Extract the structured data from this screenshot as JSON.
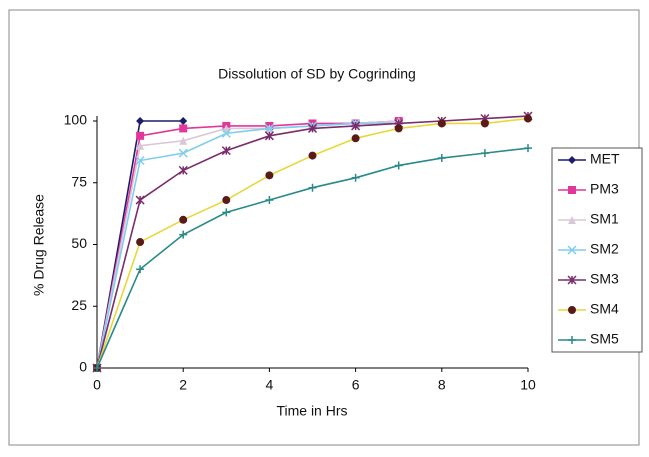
{
  "chart_data": {
    "type": "line",
    "title": "Dissolution of SD by Cogrinding",
    "x_label": "Time in Hrs",
    "y_label": "% Drug Release",
    "x": [
      0,
      1,
      2,
      3,
      4,
      5,
      6,
      7,
      8,
      9,
      10
    ],
    "series": [
      {
        "name": "MET",
        "color": "#1c1c6e",
        "marker": "diamond",
        "values": [
          0,
          100,
          100,
          null,
          null,
          null,
          null,
          null,
          null,
          null,
          null
        ]
      },
      {
        "name": "PM3",
        "color": "#e0379a",
        "marker": "square",
        "values": [
          0,
          94,
          97,
          98,
          98,
          99,
          99,
          100,
          null,
          null,
          null
        ]
      },
      {
        "name": "SM1",
        "color": "#d9c6d6",
        "marker": "triangle",
        "values": [
          0,
          90,
          92,
          97,
          97,
          98,
          99,
          100,
          null,
          null,
          null
        ]
      },
      {
        "name": "SM2",
        "color": "#7fcdee",
        "marker": "cross",
        "values": [
          0,
          84,
          87,
          95,
          97,
          98,
          99,
          99,
          null,
          null,
          null
        ]
      },
      {
        "name": "SM3",
        "color": "#7b2c6b",
        "marker": "star",
        "values": [
          0,
          68,
          80,
          88,
          94,
          97,
          98,
          99,
          100,
          101,
          102
        ]
      },
      {
        "name": "SM4",
        "color": "#e8d83a",
        "marker_color": "#5b1a1a",
        "marker": "circle",
        "values": [
          0,
          51,
          60,
          68,
          78,
          86,
          93,
          97,
          99,
          99,
          101
        ]
      },
      {
        "name": "SM5",
        "color": "#2a8a8a",
        "marker": "plus",
        "values": [
          0,
          40,
          54,
          63,
          68,
          73,
          77,
          82,
          85,
          87,
          89
        ]
      }
    ],
    "xlim": [
      0,
      10
    ],
    "xticks": [
      0,
      2,
      4,
      6,
      8,
      10
    ],
    "ylim": [
      0,
      100
    ],
    "yticks": [
      0,
      25,
      50,
      75,
      100
    ],
    "grid": false,
    "legend": "right"
  }
}
